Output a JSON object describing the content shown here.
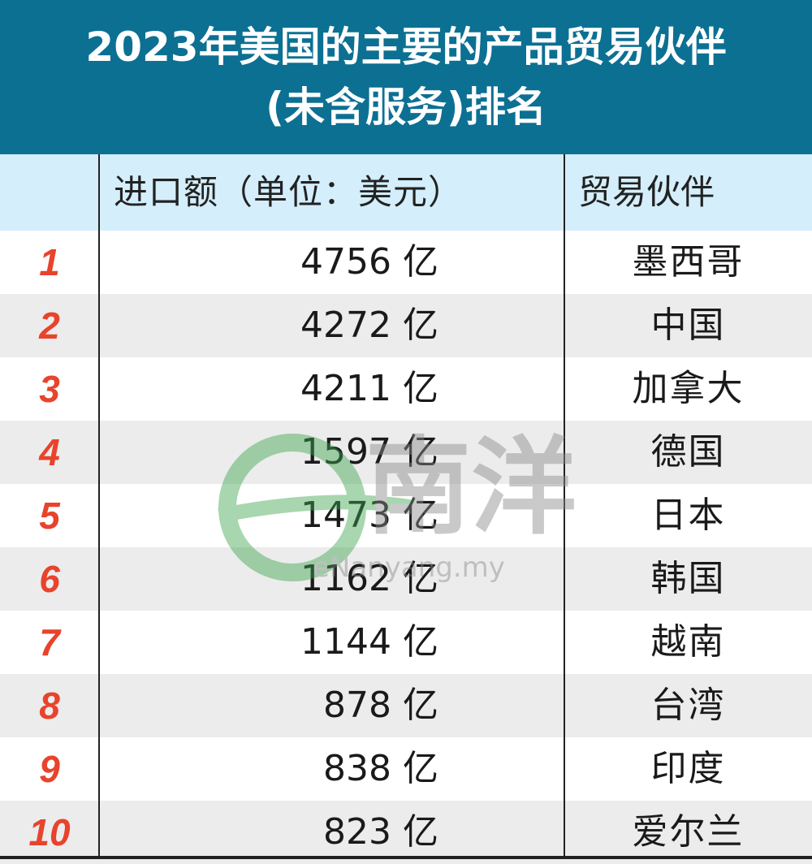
{
  "title": {
    "line1": "2023年美国的主要的产品贸易伙伴",
    "line2": "(未含服务)排名"
  },
  "header": {
    "import": "进口额（单位：美元）",
    "partner": "贸易伙伴"
  },
  "watermark": {
    "text": "南洋",
    "url_text": "eNanyang.my"
  },
  "colors": {
    "title_bg": "#0c7093",
    "header_bg": "#d4eefb",
    "rank": "#e8432c",
    "alt_row": "#ececec"
  },
  "chart_data": {
    "type": "table",
    "columns": [
      "",
      "进口额（单位：美元）",
      "贸易伙伴"
    ],
    "rows": [
      {
        "rank": "1",
        "value": "4756 亿",
        "partner": "墨西哥"
      },
      {
        "rank": "2",
        "value": "4272 亿",
        "partner": "中国"
      },
      {
        "rank": "3",
        "value": "4211 亿",
        "partner": "加拿大"
      },
      {
        "rank": "4",
        "value": "1597 亿",
        "partner": "德国"
      },
      {
        "rank": "5",
        "value": "1473 亿",
        "partner": "日本"
      },
      {
        "rank": "6",
        "value": "1162 亿",
        "partner": "韩国"
      },
      {
        "rank": "7",
        "value": "1144 亿",
        "partner": "越南"
      },
      {
        "rank": "8",
        "value": "878 亿",
        "partner": "台湾"
      },
      {
        "rank": "9",
        "value": "838 亿",
        "partner": "印度"
      },
      {
        "rank": "10",
        "value": "823 亿",
        "partner": "爱尔兰"
      }
    ]
  }
}
